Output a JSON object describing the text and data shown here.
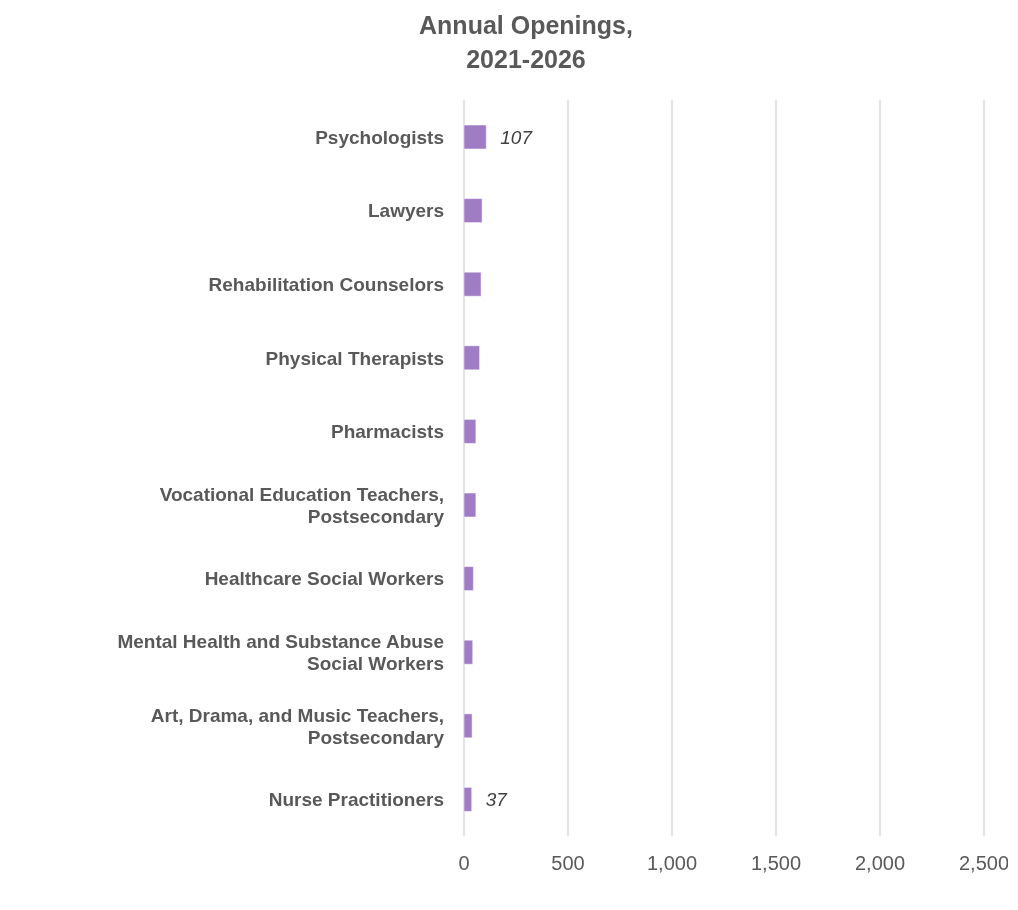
{
  "chart_data": {
    "type": "bar",
    "orientation": "horizontal",
    "title": "Annual Openings,\n2021-2026",
    "categories": [
      "Psychologists",
      "Lawyers",
      "Rehabilitation Counselors",
      "Physical Therapists",
      "Pharmacists",
      "Vocational Education Teachers, Postsecondary",
      "Healthcare Social Workers",
      "Mental Health and Substance Abuse Social Workers",
      "Art, Drama, and Music Teachers, Postsecondary",
      "Nurse Practitioners"
    ],
    "values": [
      107,
      87,
      82,
      75,
      57,
      57,
      45,
      42,
      39,
      37
    ],
    "value_labels": [
      "107",
      null,
      null,
      null,
      null,
      null,
      null,
      null,
      null,
      "37"
    ],
    "color": "#a07cc5",
    "xlim": [
      0,
      2500
    ],
    "xticks": [
      {
        "value": 0,
        "label": "0"
      },
      {
        "value": 500,
        "label": "500"
      },
      {
        "value": 1000,
        "label": "1,000"
      },
      {
        "value": 1500,
        "label": "1,500"
      },
      {
        "value": 2000,
        "label": "2,000"
      },
      {
        "value": 2500,
        "label": "2,500"
      }
    ],
    "grid": "x",
    "legend": false
  }
}
